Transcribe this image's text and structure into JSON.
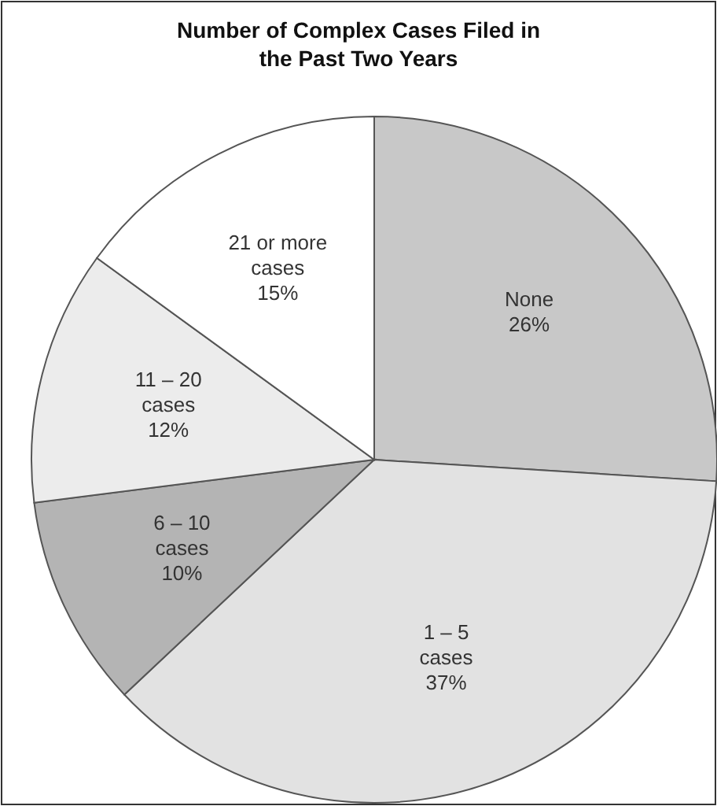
{
  "chart_data": {
    "type": "pie",
    "title": "Number of Complex Cases Filed in the Past Two Years",
    "categories": [
      "None",
      "1 – 5 cases",
      "6 – 10 cases",
      "11 – 20 cases",
      "21 or more cases"
    ],
    "values": [
      26,
      37,
      10,
      12,
      15
    ],
    "value_labels": [
      "26%",
      "37%",
      "10%",
      "12%",
      "15%"
    ],
    "colors": [
      "#c8c8c8",
      "#e2e2e2",
      "#b4b4b4",
      "#ececec",
      "#ffffff"
    ]
  }
}
